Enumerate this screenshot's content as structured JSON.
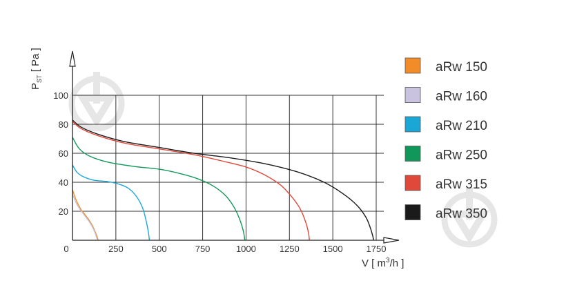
{
  "chart_data": {
    "type": "line",
    "xlabel": {
      "pre": "V [ m",
      "sup": "3",
      "post": "/h ]"
    },
    "ylabel": {
      "pre": "P",
      "sub": "ST",
      "post": " [ Pa ]"
    },
    "x_ticks": [
      "0",
      "250",
      "500",
      "750",
      "1000",
      "1250",
      "1500",
      "1750"
    ],
    "y_ticks": [
      "20",
      "40",
      "60",
      "80",
      "100"
    ],
    "xlim": [
      0,
      1900
    ],
    "ylim": [
      0,
      100
    ],
    "grid": true,
    "legend_position": "right",
    "series": [
      {
        "name": "aRw  150",
        "color": "#f28c28",
        "points": [
          [
            0,
            35
          ],
          [
            20,
            28
          ],
          [
            45,
            22
          ],
          [
            70,
            18
          ],
          [
            95,
            14
          ],
          [
            115,
            10
          ],
          [
            130,
            6
          ],
          [
            140,
            3
          ],
          [
            148,
            0
          ]
        ]
      },
      {
        "name": "aRw  160",
        "color": "#c9c3e0",
        "points": [
          [
            0,
            32
          ],
          [
            20,
            26
          ],
          [
            45,
            21
          ],
          [
            70,
            17
          ],
          [
            95,
            13
          ],
          [
            115,
            9
          ],
          [
            130,
            5
          ],
          [
            138,
            2
          ],
          [
            145,
            0
          ]
        ]
      },
      {
        "name": "aRw  210",
        "color": "#1aa7d6",
        "points": [
          [
            0,
            52
          ],
          [
            25,
            47
          ],
          [
            60,
            44
          ],
          [
            120,
            41.5
          ],
          [
            200,
            40.5
          ],
          [
            260,
            39
          ],
          [
            320,
            36
          ],
          [
            370,
            30
          ],
          [
            405,
            22
          ],
          [
            425,
            13
          ],
          [
            438,
            5
          ],
          [
            443,
            0
          ]
        ]
      },
      {
        "name": "aRw  250",
        "color": "#12975a",
        "points": [
          [
            0,
            71
          ],
          [
            40,
            63
          ],
          [
            100,
            58
          ],
          [
            200,
            54
          ],
          [
            350,
            51
          ],
          [
            500,
            49
          ],
          [
            620,
            46
          ],
          [
            720,
            42.5
          ],
          [
            810,
            37.5
          ],
          [
            880,
            31
          ],
          [
            930,
            23
          ],
          [
            965,
            14
          ],
          [
            985,
            6
          ],
          [
            993,
            0
          ]
        ]
      },
      {
        "name": "aRw  315",
        "color": "#e0483a",
        "points": [
          [
            0,
            82
          ],
          [
            50,
            77
          ],
          [
            150,
            72
          ],
          [
            300,
            67
          ],
          [
            500,
            63
          ],
          [
            700,
            59
          ],
          [
            850,
            55
          ],
          [
            1000,
            50.5
          ],
          [
            1100,
            45.5
          ],
          [
            1200,
            38
          ],
          [
            1270,
            29
          ],
          [
            1315,
            21
          ],
          [
            1345,
            12
          ],
          [
            1360,
            5
          ],
          [
            1365,
            0
          ]
        ]
      },
      {
        "name": "aRw  350",
        "color": "#1a1a1a",
        "points": [
          [
            0,
            83
          ],
          [
            50,
            78
          ],
          [
            150,
            73
          ],
          [
            300,
            68
          ],
          [
            500,
            64
          ],
          [
            700,
            60
          ],
          [
            900,
            57
          ],
          [
            1100,
            53
          ],
          [
            1300,
            47
          ],
          [
            1450,
            40
          ],
          [
            1560,
            32
          ],
          [
            1640,
            24
          ],
          [
            1690,
            16
          ],
          [
            1715,
            9
          ],
          [
            1730,
            3
          ],
          [
            1735,
            0
          ]
        ]
      }
    ]
  }
}
